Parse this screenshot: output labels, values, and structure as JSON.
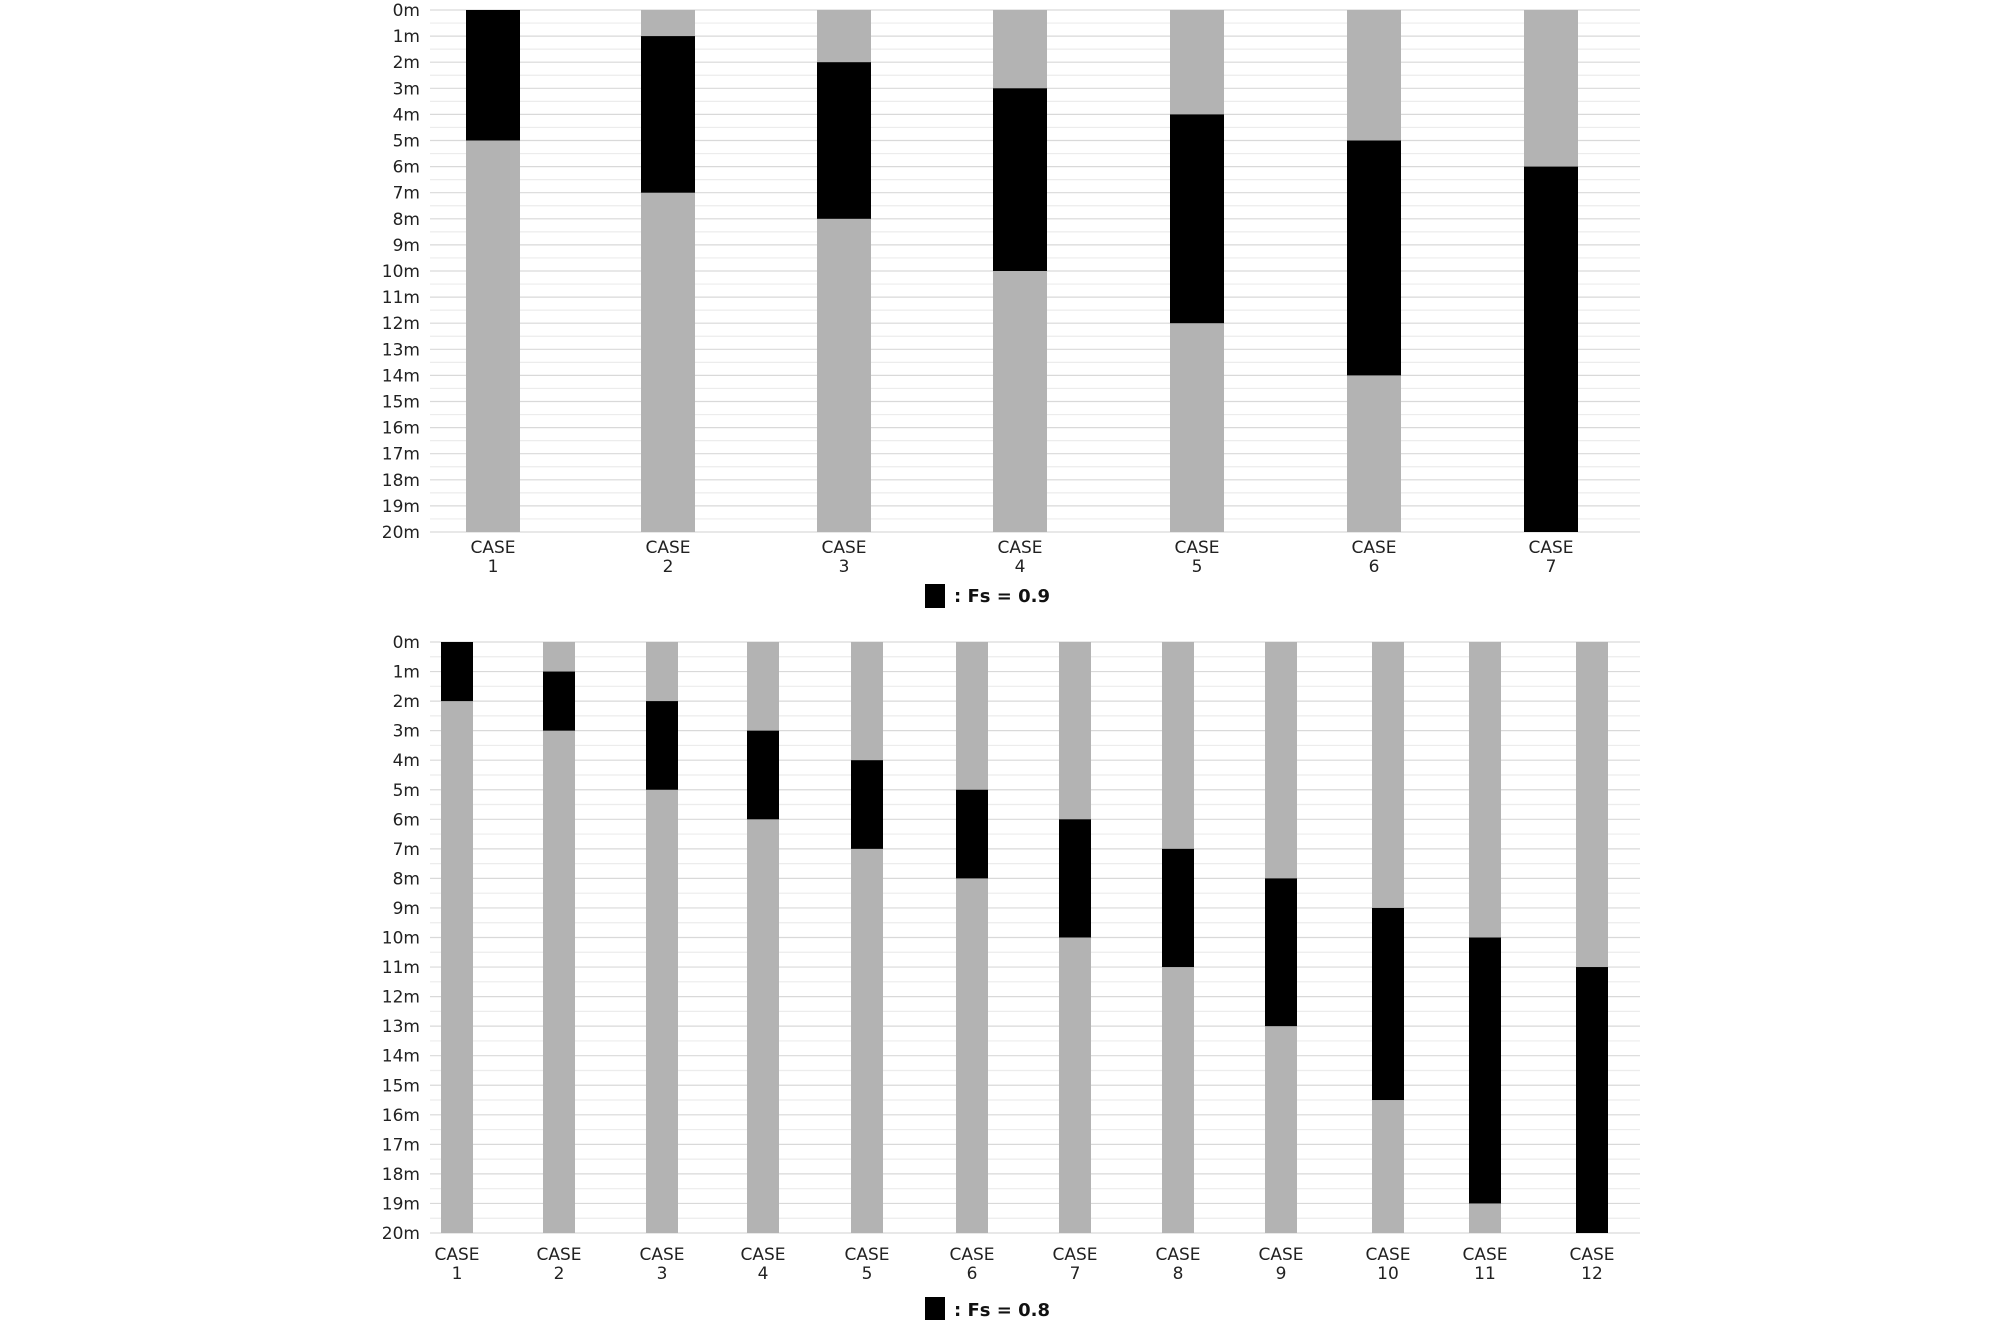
{
  "chart_data": [
    {
      "type": "bar",
      "orientation": "vertical-intervals",
      "y_axis": {
        "unit": "m",
        "range": [
          0,
          20
        ],
        "inverted": true,
        "tick_labels": [
          "0m",
          "1m",
          "2m",
          "3m",
          "4m",
          "5m",
          "6m",
          "7m",
          "8m",
          "9m",
          "10m",
          "11m",
          "12m",
          "13m",
          "14m",
          "15m",
          "16m",
          "17m",
          "18m",
          "19m",
          "20m"
        ]
      },
      "grid": true,
      "categories": [
        [
          "CASE",
          "1"
        ],
        [
          "CASE",
          "2"
        ],
        [
          "CASE",
          "3"
        ],
        [
          "CASE",
          "4"
        ],
        [
          "CASE",
          "5"
        ],
        [
          "CASE",
          "6"
        ],
        [
          "CASE",
          "7"
        ]
      ],
      "series": [
        {
          "name": ": Fs = 0.9",
          "color": "#000000",
          "intervals": [
            [
              0,
              5
            ],
            [
              1,
              7
            ],
            [
              2,
              8
            ],
            [
              3,
              10
            ],
            [
              4,
              12
            ],
            [
              5,
              14
            ],
            [
              6,
              20
            ]
          ]
        }
      ],
      "background_color": "#b3b3b3",
      "legend": {
        "label": ": Fs = 0.9",
        "position": "bottom-center"
      }
    },
    {
      "type": "bar",
      "orientation": "vertical-intervals",
      "y_axis": {
        "unit": "m",
        "range": [
          0,
          20
        ],
        "inverted": true,
        "tick_labels": [
          "0m",
          "1m",
          "2m",
          "3m",
          "4m",
          "5m",
          "6m",
          "7m",
          "8m",
          "9m",
          "10m",
          "11m",
          "12m",
          "13m",
          "14m",
          "15m",
          "16m",
          "17m",
          "18m",
          "19m",
          "20m"
        ]
      },
      "grid": true,
      "categories": [
        [
          "CASE",
          "1"
        ],
        [
          "CASE",
          "2"
        ],
        [
          "CASE",
          "3"
        ],
        [
          "CASE",
          "4"
        ],
        [
          "CASE",
          "5"
        ],
        [
          "CASE",
          "6"
        ],
        [
          "CASE",
          "7"
        ],
        [
          "CASE",
          "8"
        ],
        [
          "CASE",
          "9"
        ],
        [
          "CASE",
          "10"
        ],
        [
          "CASE",
          "11"
        ],
        [
          "CASE",
          "12"
        ]
      ],
      "series": [
        {
          "name": ": Fs = 0.8",
          "color": "#000000",
          "intervals": [
            [
              0,
              2
            ],
            [
              1,
              3
            ],
            [
              2,
              5
            ],
            [
              3,
              6
            ],
            [
              4,
              7
            ],
            [
              5,
              8
            ],
            [
              6,
              10
            ],
            [
              7,
              11
            ],
            [
              8,
              13
            ],
            [
              9,
              15.5
            ],
            [
              10,
              19
            ],
            [
              11,
              20
            ]
          ]
        }
      ],
      "background_color": "#b3b3b3",
      "legend": {
        "label": ": Fs = 0.8",
        "position": "bottom-center"
      }
    }
  ]
}
